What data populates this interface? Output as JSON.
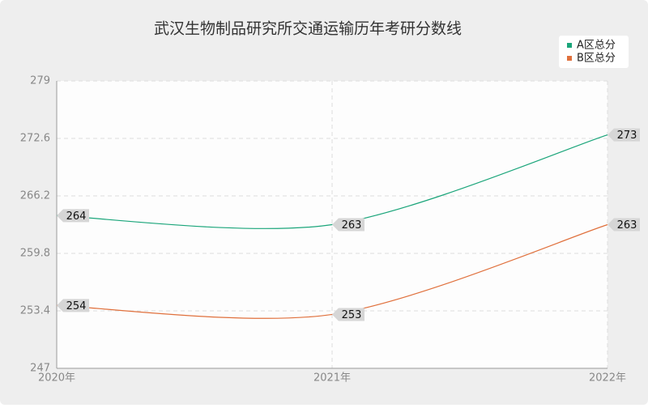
{
  "chart_data": {
    "type": "line",
    "title": "武汉生物制品研究所交通运输历年考研分数线",
    "categories": [
      "2020年",
      "2021年",
      "2022年"
    ],
    "series": [
      {
        "name": "A区总分",
        "color": "#1aa57a",
        "values": [
          264,
          263,
          273
        ]
      },
      {
        "name": "B区总分",
        "color": "#e0703c",
        "values": [
          254,
          253,
          263
        ]
      }
    ],
    "ylim": [
      247,
      279
    ],
    "yticks": [
      247,
      253.4,
      259.8,
      266.2,
      272.6,
      279
    ],
    "grid": true,
    "legend": "top-right"
  }
}
